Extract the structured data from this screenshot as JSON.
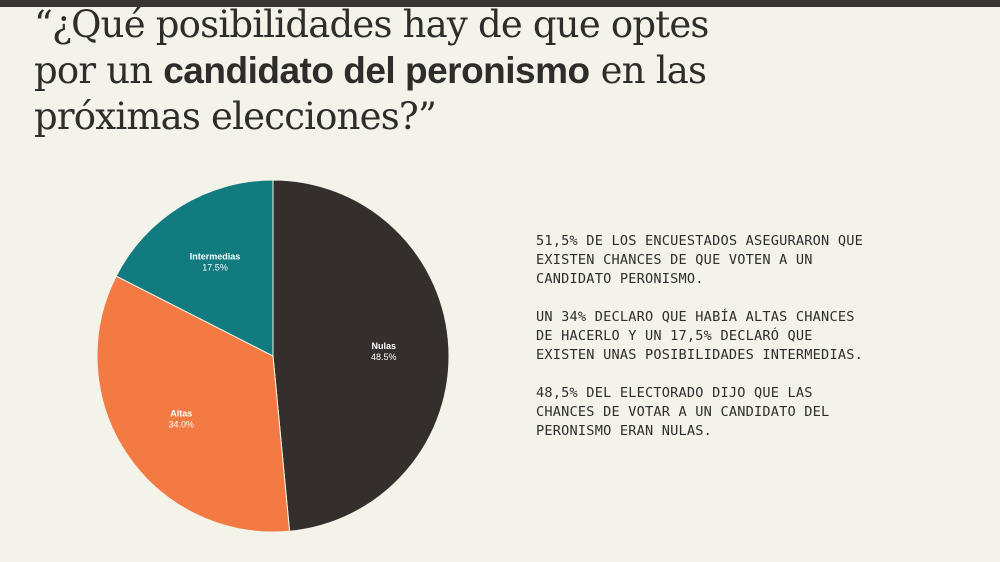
{
  "title": {
    "part1": "“¿Qué posibilidades hay de que optes",
    "part2": "por un ",
    "bold": "candidato del peronismo",
    "part3": " en las",
    "part4": "próximas elecciones?”"
  },
  "chart_data": {
    "type": "pie",
    "slices": [
      {
        "label": "Nulas",
        "value": 48.5,
        "value_label": "48.5%",
        "color": "#342f2d"
      },
      {
        "label": "Altas",
        "value": 34.0,
        "value_label": "34.0%",
        "color": "#f47a44"
      },
      {
        "label": "Intermedias",
        "value": 17.5,
        "value_label": "17.5%",
        "color": "#127b80"
      }
    ],
    "start": "12 o'clock",
    "direction": "clockwise"
  },
  "notes": [
    "51,5% DE LOS ENCUESTADOS ASEGURARON QUE\nEXISTEN CHANCES DE QUE VOTEN A UN\nCANDIDATO PERONISMO.",
    "UN 34% DECLARO QUE HABÍA ALTAS CHANCES\nDE HACERLO Y UN 17,5% DECLARÓ QUE\nEXISTEN UNAS POSIBILIDADES INTERMEDIAS.",
    "48,5% DEL ELECTORADO DIJO QUE LAS\nCHANCES DE VOTAR A UN CANDIDATO DEL\nPERONISMO ERAN NULAS."
  ]
}
